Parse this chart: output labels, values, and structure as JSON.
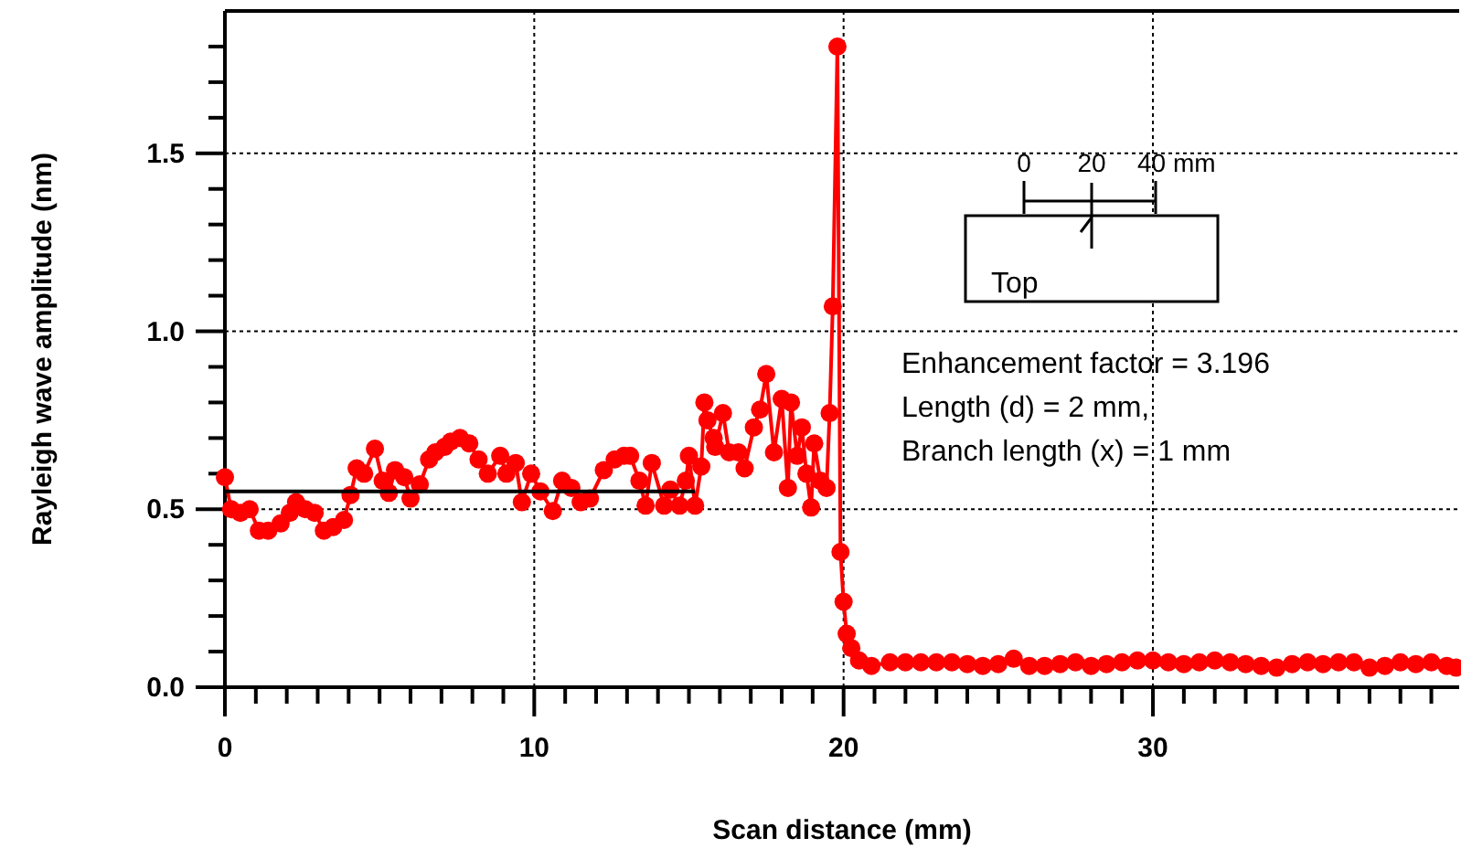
{
  "chart_data": {
    "type": "line",
    "xlabel": "Scan distance (mm)",
    "ylabel": "Rayleigh wave amplitude (nm)",
    "xlim": [
      0,
      39.9
    ],
    "ylim": [
      0,
      1.9
    ],
    "xticks": [
      0,
      {
        "value": 1,
        "label": null
      },
      {
        "value": 2,
        "label": null
      },
      {
        "value": 3,
        "label": null
      },
      {
        "value": 4,
        "label": null
      },
      {
        "value": 5,
        "label": null
      },
      {
        "value": 6,
        "label": null
      },
      {
        "value": 7,
        "label": null
      },
      {
        "value": 8,
        "label": null
      },
      {
        "value": 9,
        "label": null
      },
      10,
      {
        "value": 11,
        "label": null
      },
      {
        "value": 12,
        "label": null
      },
      {
        "value": 13,
        "label": null
      },
      {
        "value": 14,
        "label": null
      },
      {
        "value": 15,
        "label": null
      },
      {
        "value": 16,
        "label": null
      },
      {
        "value": 17,
        "label": null
      },
      {
        "value": 18,
        "label": null
      },
      {
        "value": 19,
        "label": null
      },
      20,
      {
        "value": 21,
        "label": null
      },
      {
        "value": 22,
        "label": null
      },
      {
        "value": 23,
        "label": null
      },
      {
        "value": 24,
        "label": null
      },
      {
        "value": 25,
        "label": null
      },
      {
        "value": 26,
        "label": null
      },
      {
        "value": 27,
        "label": null
      },
      {
        "value": 28,
        "label": null
      },
      {
        "value": 29,
        "label": null
      },
      30,
      {
        "value": 31,
        "label": null
      },
      {
        "value": 32,
        "label": null
      },
      {
        "value": 33,
        "label": null
      },
      {
        "value": 34,
        "label": null
      },
      {
        "value": 35,
        "label": null
      },
      {
        "value": 36,
        "label": null
      },
      {
        "value": 37,
        "label": null
      },
      {
        "value": 38,
        "label": null
      },
      {
        "value": 39,
        "label": null
      }
    ],
    "yticks": [
      {
        "value": 0,
        "label": "0.0"
      },
      {
        "value": 0.1,
        "label": null
      },
      {
        "value": 0.2,
        "label": null
      },
      {
        "value": 0.3,
        "label": null
      },
      {
        "value": 0.4,
        "label": null
      },
      0.5,
      {
        "value": 0.6,
        "label": null
      },
      {
        "value": 0.7,
        "label": null
      },
      {
        "value": 0.8,
        "label": null
      },
      {
        "value": 0.9,
        "label": null
      },
      {
        "value": 1,
        "label": "1.0"
      },
      {
        "value": 1.1,
        "label": null
      },
      {
        "value": 1.2,
        "label": null
      },
      {
        "value": 1.3,
        "label": null
      },
      {
        "value": 1.4,
        "label": null
      },
      1.5,
      {
        "value": 1.6,
        "label": null
      },
      {
        "value": 1.7,
        "label": null
      },
      {
        "value": 1.8,
        "label": null
      }
    ],
    "grid": true,
    "series": [
      {
        "color": "#ff0000",
        "marker": "circle",
        "x": [
          0,
          0.2,
          0.5,
          0.8,
          1.1,
          1.4,
          1.8,
          2.1,
          2.3,
          2.6,
          2.9,
          3.2,
          3.5,
          3.85,
          4.06,
          4.26,
          4.5,
          4.85,
          5.1,
          5.3,
          5.5,
          5.8,
          6.0,
          6.3,
          6.6,
          6.8,
          7.1,
          7.3,
          7.6,
          7.9,
          8.2,
          8.5,
          8.9,
          9.1,
          9.4,
          9.6,
          9.9,
          10.2,
          10.6,
          10.9,
          11.2,
          11.5,
          11.8,
          12.25,
          12.6,
          12.9,
          13.1,
          13.4,
          13.6,
          13.8,
          14.2,
          14.4,
          14.7,
          14.9,
          15.0,
          15.2,
          15.4,
          15.5,
          15.6,
          15.8,
          15.85,
          16.1,
          16.3,
          16.6,
          16.8,
          17.1,
          17.3,
          17.5,
          17.75,
          18.0,
          18.2,
          18.3,
          18.5,
          18.65,
          18.8,
          18.95,
          19.05,
          19.25,
          19.45,
          19.55,
          19.65,
          19.8,
          19.9,
          20.0,
          20.1,
          20.25,
          20.5,
          20.9,
          21.5,
          22,
          22.5,
          23,
          23.5,
          24,
          24.5,
          25,
          25.5,
          26,
          26.5,
          27,
          27.5,
          28,
          28.5,
          29,
          29.5,
          30,
          30.5,
          31,
          31.5,
          32,
          32.5,
          33,
          33.5,
          34,
          34.5,
          35,
          35.5,
          36,
          36.5,
          37,
          37.5,
          38,
          38.5,
          39,
          39.5,
          39.8
        ],
        "values": [
          0.59,
          0.5,
          0.49,
          0.5,
          0.44,
          0.44,
          0.46,
          0.49,
          0.52,
          0.5,
          0.49,
          0.44,
          0.45,
          0.47,
          0.54,
          0.615,
          0.6,
          0.67,
          0.58,
          0.546,
          0.61,
          0.59,
          0.53,
          0.57,
          0.64,
          0.66,
          0.675,
          0.69,
          0.7,
          0.685,
          0.64,
          0.6,
          0.65,
          0.6,
          0.63,
          0.52,
          0.6,
          0.55,
          0.495,
          0.58,
          0.56,
          0.52,
          0.53,
          0.61,
          0.64,
          0.65,
          0.65,
          0.58,
          0.51,
          0.63,
          0.51,
          0.555,
          0.51,
          0.58,
          0.65,
          0.51,
          0.62,
          0.8,
          0.75,
          0.7,
          0.675,
          0.77,
          0.66,
          0.66,
          0.615,
          0.73,
          0.78,
          0.88,
          0.66,
          0.81,
          0.56,
          0.8,
          0.65,
          0.73,
          0.6,
          0.505,
          0.685,
          0.58,
          0.56,
          0.77,
          1.07,
          1.8,
          0.38,
          0.24,
          0.15,
          0.11,
          0.075,
          0.06,
          0.07,
          0.07,
          0.07,
          0.07,
          0.07,
          0.065,
          0.06,
          0.065,
          0.08,
          0.06,
          0.06,
          0.065,
          0.07,
          0.06,
          0.065,
          0.07,
          0.075,
          0.075,
          0.07,
          0.065,
          0.07,
          0.075,
          0.07,
          0.065,
          0.06,
          0.055,
          0.065,
          0.07,
          0.065,
          0.07,
          0.07,
          0.055,
          0.06,
          0.07,
          0.065,
          0.07,
          0.06,
          0.055
        ]
      },
      {
        "color": "#000000",
        "marker": "none",
        "x": [
          0,
          15.2
        ],
        "values": [
          0.55,
          0.55
        ]
      }
    ],
    "annotations": [
      "Enhancement factor = 3.196",
      "Length (d) = 2 mm,",
      "Branch length (x) = 1 mm",
      "0",
      "20",
      "40 mm",
      "Top"
    ]
  }
}
